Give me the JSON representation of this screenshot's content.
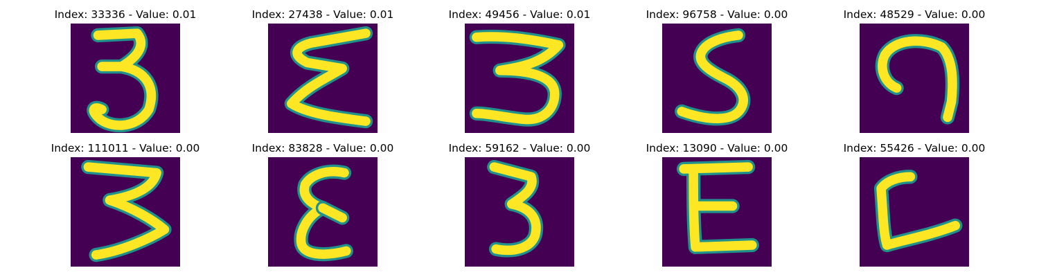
{
  "colors": {
    "background": "#440154",
    "mid": "#21918c",
    "stroke": "#fde725"
  },
  "panels": [
    {
      "title": "Index: 33336 - Value: 0.01"
    },
    {
      "title": "Index: 27438 - Value: 0.01"
    },
    {
      "title": "Index: 49456 - Value: 0.01"
    },
    {
      "title": "Index: 96758 - Value: 0.00"
    },
    {
      "title": "Index: 48529 - Value: 0.00"
    },
    {
      "title": "Index: 111011 - Value: 0.00"
    },
    {
      "title": "Index: 83828 - Value: 0.00"
    },
    {
      "title": "Index: 59162 - Value: 0.00"
    },
    {
      "title": "Index: 13090 - Value: 0.00"
    },
    {
      "title": "Index: 55426 - Value: 0.00"
    }
  ]
}
